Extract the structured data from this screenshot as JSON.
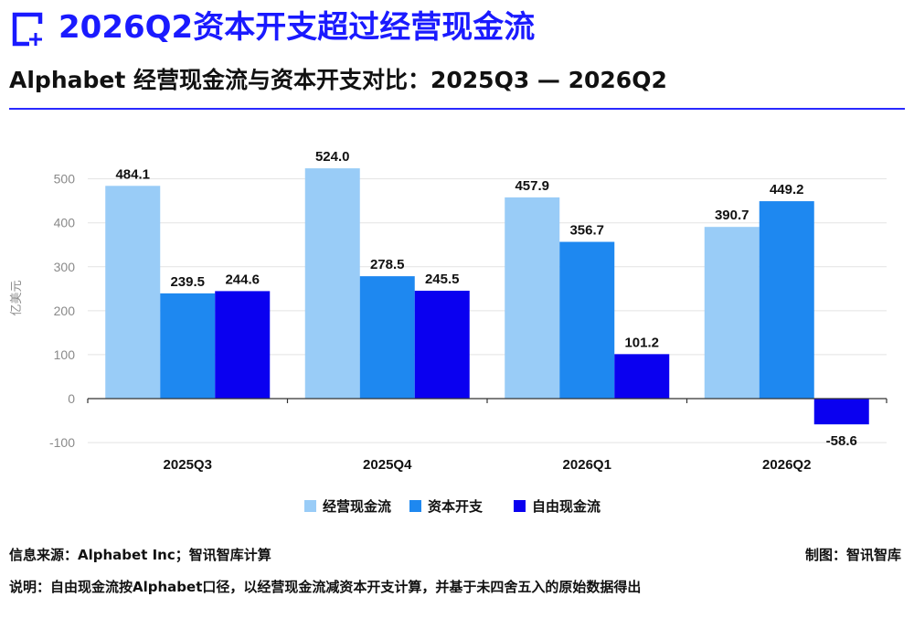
{
  "header": {
    "title": "2026Q2资本开支超过经营现金流",
    "subtitle": "Alphabet 经营现金流与资本开支对比：2025Q3 — 2026Q2",
    "logo_icon": "bracket-plus-icon"
  },
  "chart_data": {
    "type": "bar",
    "categories": [
      "2025Q3",
      "2025Q4",
      "2026Q1",
      "2026Q2"
    ],
    "series": [
      {
        "name": "经营现金流",
        "color": "#99ccf7",
        "values": [
          484.1,
          524.0,
          457.9,
          390.7
        ],
        "labels": [
          "484.1",
          "524.0",
          "457.9",
          "390.7"
        ]
      },
      {
        "name": "资本开支",
        "color": "#1e88f0",
        "values": [
          239.5,
          278.5,
          356.7,
          449.2
        ],
        "labels": [
          "239.5",
          "278.5",
          "356.7",
          "449.2"
        ]
      },
      {
        "name": "自由现金流",
        "color": "#0a00f0",
        "values": [
          244.6,
          245.5,
          101.2,
          -58.6
        ],
        "labels": [
          "244.6",
          "245.5",
          "101.2",
          "-58.6"
        ]
      }
    ],
    "ylabel": "亿美元",
    "xlabel": "",
    "ylim": [
      -100,
      550
    ],
    "yticks": [
      -100,
      0,
      100,
      200,
      300,
      400,
      500
    ],
    "grid": true,
    "legend_position": "bottom-center"
  },
  "footer": {
    "source": "信息来源：Alphabet Inc；智讯智库计算",
    "maker": "制图：智讯智库",
    "note": "说明：自由现金流按Alphabet口径，以经营现金流减资本开支计算，并基于未四舍五入的原始数据得出"
  }
}
